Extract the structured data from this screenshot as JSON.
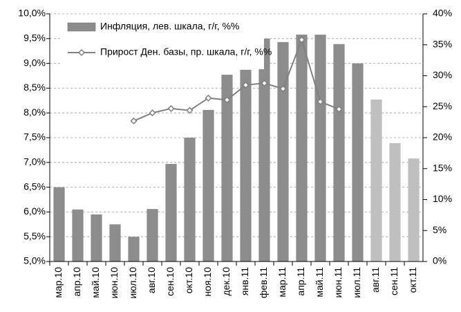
{
  "chart_data": {
    "type": "bar_line",
    "categories": [
      "мар.10",
      "апр.10",
      "май.10",
      "июн.10",
      "июл.10",
      "авг.10",
      "сен.10",
      "окт.10",
      "ноя.10",
      "дек.10",
      "янв.11",
      "фев.11",
      "мар.11",
      "апр.11",
      "май.11",
      "июн.11",
      "июл.11",
      "авг.11",
      "сен.11",
      "окт.11"
    ],
    "series": [
      {
        "name": "Инфляция, лев. шкала, г/г, %%",
        "type": "bar",
        "color": "#8c8c8c",
        "colors": [
          "#8c8c8c",
          "#8c8c8c",
          "#8c8c8c",
          "#8c8c8c",
          "#8c8c8c",
          "#8c8c8c",
          "#8c8c8c",
          "#8c8c8c",
          "#8c8c8c",
          "#8c8c8c",
          "#8c8c8c",
          "#8c8c8c",
          "#8c8c8c",
          "#8c8c8c",
          "#8c8c8c",
          "#8c8c8c",
          "#8c8c8c",
          "#bfbfbf",
          "#bfbfbf",
          "#bfbfbf"
        ],
        "values": [
          6.5,
          6.05,
          5.95,
          5.75,
          5.5,
          6.06,
          6.97,
          7.5,
          8.06,
          8.77,
          8.87,
          9.5,
          9.43,
          9.58,
          9.58,
          9.39,
          9.0,
          8.27,
          7.39,
          7.08
        ]
      },
      {
        "name": "Прирост Ден. базы, пр. шкала, г/г, %%",
        "type": "line",
        "axis": "y2",
        "color": "#808080",
        "values": [
          null,
          null,
          null,
          null,
          22.7,
          24.0,
          24.7,
          24.4,
          26.4,
          26.1,
          28.5,
          28.8,
          27.9,
          35.8,
          25.8,
          24.6,
          null,
          null,
          null,
          null
        ]
      }
    ],
    "ylim": [
      5,
      10
    ],
    "yticks": [
      {
        "value": 5,
        "label": "5,0%"
      },
      {
        "value": 5.5,
        "label": "5,5%"
      },
      {
        "value": 6,
        "label": "6,0%"
      },
      {
        "value": 6.5,
        "label": "6,5%"
      },
      {
        "value": 7,
        "label": "7,0%"
      },
      {
        "value": 7.5,
        "label": "7,5%"
      },
      {
        "value": 8,
        "label": "8,0%"
      },
      {
        "value": 8.5,
        "label": "8,5%"
      },
      {
        "value": 9,
        "label": "9,0%"
      },
      {
        "value": 9.5,
        "label": "9,5%"
      },
      {
        "value": 10,
        "label": "10,0%"
      }
    ],
    "y2lim": [
      0,
      40
    ],
    "y2ticks": [
      {
        "value": 0,
        "label": "0%"
      },
      {
        "value": 5,
        "label": "5%"
      },
      {
        "value": 10,
        "label": "10%"
      },
      {
        "value": 15,
        "label": "15%"
      },
      {
        "value": 20,
        "label": "20%"
      },
      {
        "value": 25,
        "label": "25%"
      },
      {
        "value": 30,
        "label": "30%"
      },
      {
        "value": 35,
        "label": "35%"
      },
      {
        "value": 40,
        "label": "40%"
      }
    ],
    "grid": true,
    "legend": "top-left"
  }
}
